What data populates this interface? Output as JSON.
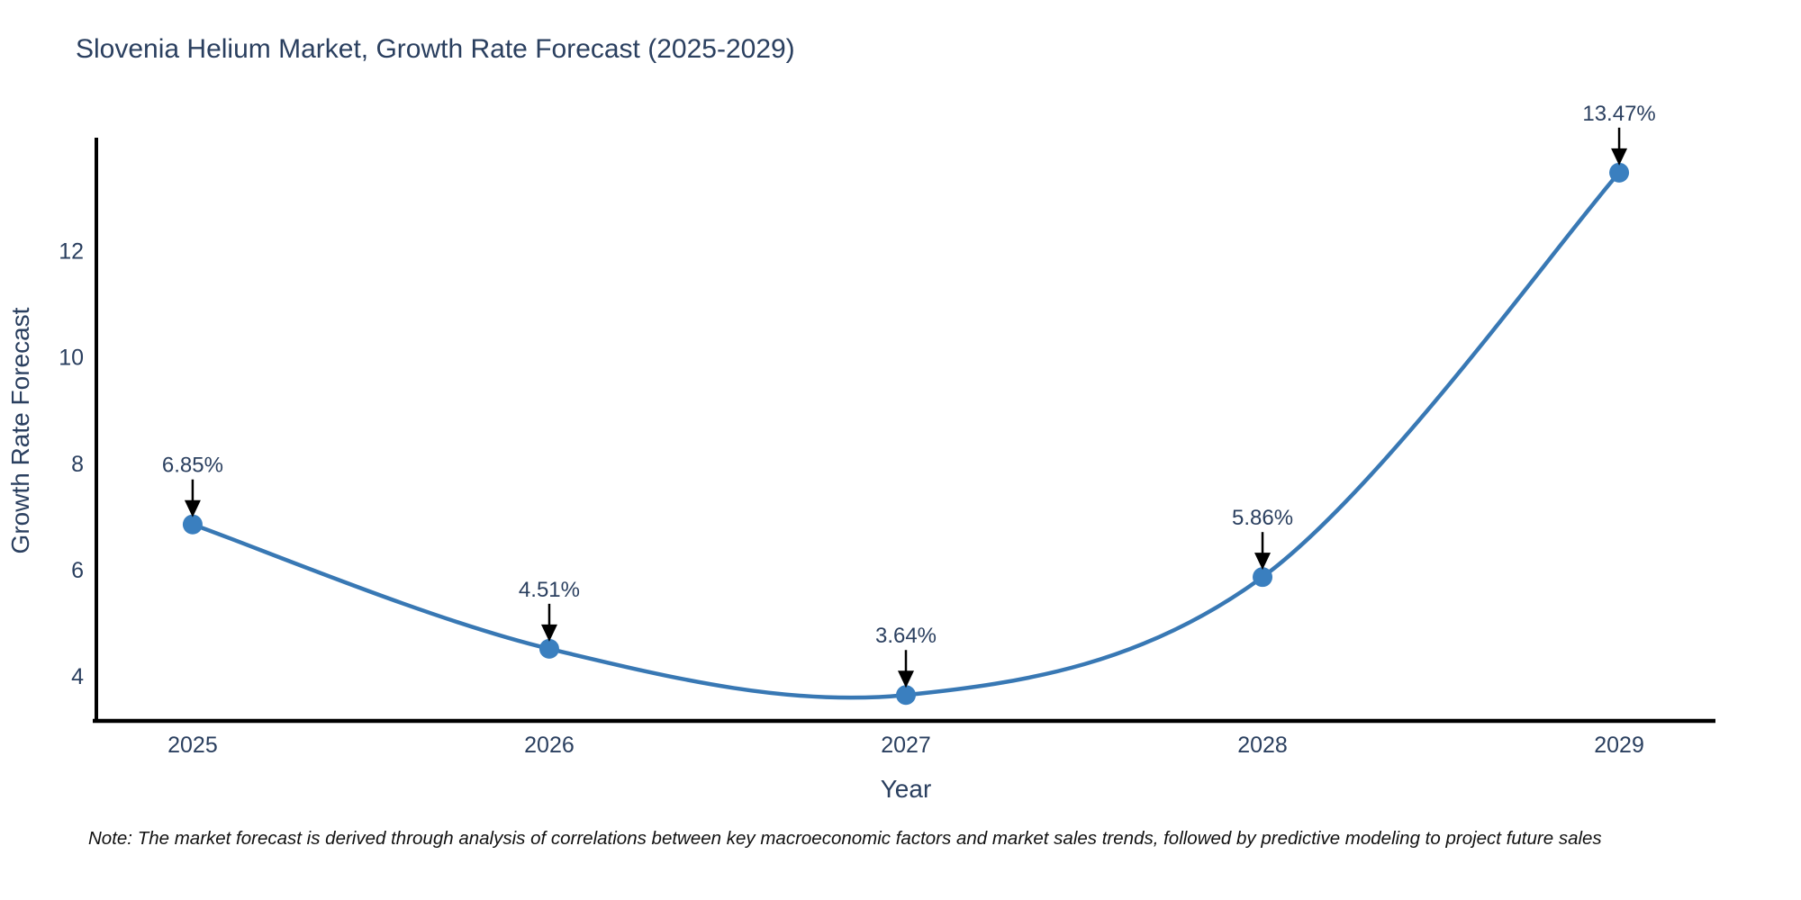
{
  "chart_data": {
    "type": "line",
    "title": "Slovenia Helium Market, Growth Rate Forecast (2025-2029)",
    "xlabel": "Year",
    "ylabel": "Growth Rate Forecast",
    "categories": [
      "2025",
      "2026",
      "2027",
      "2028",
      "2029"
    ],
    "x": [
      2025,
      2026,
      2027,
      2028,
      2029
    ],
    "series": [
      {
        "name": "Growth Rate Forecast",
        "values": [
          6.85,
          4.51,
          3.64,
          5.86,
          13.47
        ]
      }
    ],
    "point_labels": [
      "6.85%",
      "4.51%",
      "3.64%",
      "5.86%",
      "13.47%"
    ],
    "yticks": [
      4,
      6,
      8,
      10,
      12
    ],
    "ylim": [
      3.17,
      14.06
    ],
    "xlim": [
      2024.73,
      2029.27
    ],
    "line_shape": "spline",
    "grid": false,
    "legend_position": "none",
    "colors": {
      "line": "#3878b4",
      "marker": "#3a7fbf",
      "axis": "#000000",
      "text": "#2a3f5f",
      "annotation": "#2a3f5f",
      "arrow": "#000000",
      "background": "#ffffff"
    }
  },
  "note": "Note: The market forecast is derived through analysis of correlations between key macroeconomic factors and market sales trends, followed by predictive modeling to project future sales"
}
